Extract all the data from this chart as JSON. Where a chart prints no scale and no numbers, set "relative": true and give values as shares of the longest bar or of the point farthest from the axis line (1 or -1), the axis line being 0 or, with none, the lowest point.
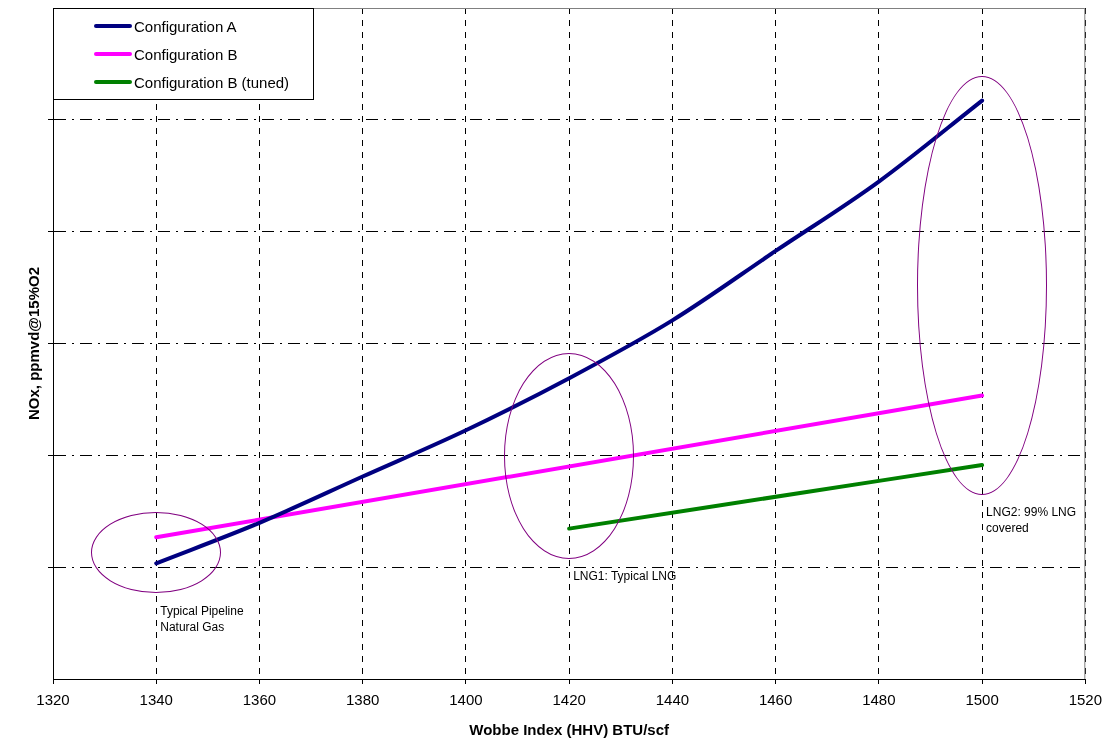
{
  "chart_data": {
    "type": "line",
    "xlabel": "Wobbe Index (HHV) BTU/scf",
    "ylabel": "NOx, ppmvd@15%O2",
    "relative": true,
    "xlim": [
      1320,
      1520
    ],
    "xticks": [
      1320,
      1340,
      1360,
      1380,
      1400,
      1420,
      1440,
      1460,
      1480,
      1500,
      1520
    ],
    "grid": true,
    "legend": "top left",
    "marker": "none",
    "line_style": "solid",
    "series": [
      {
        "name": "Configuration A",
        "color": "#000080",
        "x": [
          1340,
          1360,
          1380,
          1400,
          1420,
          1440,
          1460,
          1480,
          1500
        ],
        "values": [
          0.2,
          0.27,
          0.35,
          0.43,
          0.52,
          0.62,
          0.74,
          0.86,
          1
        ]
      },
      {
        "name": "Configuration B",
        "color": "#ff00ff",
        "x": [
          1340,
          1500
        ],
        "values": [
          0.245,
          0.49
        ]
      },
      {
        "name": "Configuration B (tuned)",
        "color": "#008000",
        "x": [
          1420,
          1500
        ],
        "values": [
          0.26,
          0.37
        ]
      }
    ],
    "annotations": [
      "Typical Pipeline Natural Gas",
      "LNG1: Typical LNG",
      "LNG2: 99% LNG covered"
    ]
  }
}
